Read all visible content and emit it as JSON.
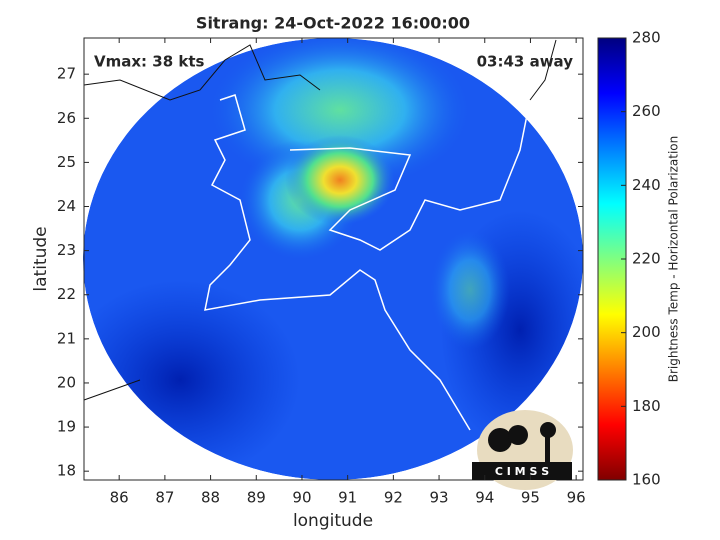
{
  "chart_data": {
    "type": "map",
    "title": "Sitrang: 24-Oct-2022 16:00:00",
    "xlabel": "longitude",
    "ylabel": "latitude",
    "xlim": [
      85.23,
      96.15
    ],
    "ylim": [
      17.8,
      27.82
    ],
    "xticks": [
      86,
      87,
      88,
      89,
      90,
      91,
      92,
      93,
      94,
      95,
      96
    ],
    "yticks": [
      18,
      19,
      20,
      21,
      22,
      23,
      24,
      25,
      26,
      27
    ],
    "annotations": [
      "Vmax: 38 kts",
      "03:43 away"
    ],
    "logo_text": "C I M S S",
    "colorbar": {
      "label": "Brightness Temp - Horizontal Polarization",
      "lim": [
        160,
        280
      ],
      "ticks": [
        160,
        180,
        200,
        220,
        240,
        260,
        280
      ],
      "colormap": "jet"
    }
  }
}
